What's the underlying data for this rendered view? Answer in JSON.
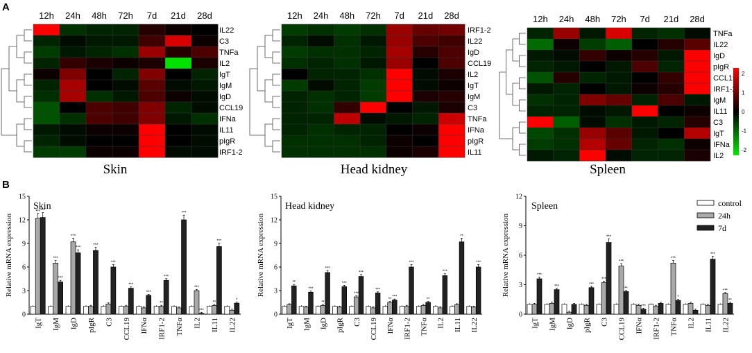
{
  "panels": {
    "a": "A",
    "b": "B"
  },
  "heatmaps": [
    {
      "title": "Skin",
      "columns": [
        "12h",
        "24h",
        "48h",
        "72h",
        "7d",
        "21d",
        "28d"
      ],
      "rows": [
        "IL22",
        "C3",
        "TNFa",
        "IL2",
        "IgT",
        "IgM",
        "IgD",
        "CCL19",
        "IFNa",
        "IL11",
        "pIgR",
        "IRF1-2"
      ],
      "values": [
        [
          2.0,
          -0.4,
          -0.3,
          -0.3,
          0.3,
          0.1,
          0.0
        ],
        [
          -0.3,
          -0.1,
          -0.2,
          -0.2,
          0.5,
          1.7,
          0.1
        ],
        [
          -0.5,
          -0.2,
          -0.3,
          -0.4,
          1.2,
          0.3,
          0.6
        ],
        [
          -0.3,
          0.4,
          0.2,
          0.1,
          0.2,
          -1.9,
          0.2
        ],
        [
          0.1,
          1.0,
          0.0,
          -0.3,
          1.0,
          0.0,
          -0.3
        ],
        [
          -0.3,
          1.3,
          0.0,
          -0.1,
          0.7,
          -0.1,
          -0.2
        ],
        [
          -0.4,
          1.3,
          -0.4,
          -0.2,
          0.6,
          0.1,
          -0.1
        ],
        [
          -0.7,
          0.0,
          0.6,
          0.5,
          1.0,
          -0.3,
          -0.1
        ],
        [
          -0.7,
          -0.4,
          0.6,
          0.5,
          1.0,
          -0.2,
          -0.4
        ],
        [
          -0.2,
          -0.1,
          0.1,
          0.1,
          2.0,
          0.0,
          -0.1
        ],
        [
          -0.3,
          -0.1,
          0.0,
          0.0,
          2.0,
          0.0,
          -0.1
        ],
        [
          -0.5,
          -0.5,
          0.1,
          0.1,
          2.0,
          -0.1,
          -0.1
        ]
      ]
    },
    {
      "title": "Head kidney",
      "columns": [
        "12h",
        "24h",
        "48h",
        "72h",
        "7d",
        "21d",
        "28d"
      ],
      "rows": [
        "IRF1-2",
        "IL22",
        "IgD",
        "CCL19",
        "IL2",
        "IgT",
        "IgM",
        "C3",
        "TNFa",
        "IFNa",
        "pIgR",
        "IL11"
      ],
      "values": [
        [
          -0.5,
          -0.4,
          -0.5,
          -0.4,
          1.2,
          0.8,
          0.9
        ],
        [
          -0.3,
          -0.1,
          -0.4,
          -0.2,
          1.2,
          0.6,
          0.5
        ],
        [
          -0.5,
          -0.4,
          -0.4,
          -0.3,
          1.3,
          0.3,
          0.6
        ],
        [
          -0.4,
          -0.3,
          -0.4,
          -0.2,
          1.2,
          0.0,
          0.6
        ],
        [
          0.0,
          -0.3,
          -0.3,
          -0.4,
          2.0,
          -0.1,
          0.2
        ],
        [
          -0.5,
          -0.1,
          -0.3,
          -0.5,
          2.0,
          -0.1,
          0.1
        ],
        [
          -0.3,
          -0.4,
          -0.3,
          -0.5,
          2.0,
          0.2,
          0.3
        ],
        [
          -0.3,
          -0.4,
          0.4,
          2.0,
          0.0,
          -0.2,
          0.2
        ],
        [
          -0.3,
          -0.3,
          1.5,
          -0.1,
          -0.2,
          -0.3,
          1.6
        ],
        [
          -0.3,
          -0.4,
          -0.3,
          -0.3,
          0.0,
          0.1,
          2.0
        ],
        [
          -0.4,
          -0.4,
          -0.4,
          -0.3,
          0.1,
          0.0,
          2.0
        ],
        [
          -0.4,
          -0.4,
          -0.4,
          -0.4,
          0.1,
          0.2,
          2.0
        ]
      ]
    },
    {
      "title": "Spleen",
      "columns": [
        "12h",
        "24h",
        "48h",
        "72h",
        "7d",
        "21d",
        "28d"
      ],
      "rows": [
        "TNFa",
        "IL22",
        "IgD",
        "pIgR",
        "CCL19",
        "IRF1-2",
        "IgM",
        "IL11",
        "C3",
        "IgT",
        "IFNa",
        "IL2"
      ],
      "values": [
        [
          -0.3,
          1.2,
          -0.2,
          1.7,
          -0.3,
          -0.4,
          -0.1
        ],
        [
          -0.9,
          0.1,
          -0.5,
          -0.8,
          0.0,
          0.3,
          0.7
        ],
        [
          -0.2,
          -0.1,
          0.4,
          0.1,
          0.3,
          -0.2,
          2.0
        ],
        [
          -0.3,
          -0.2,
          0.0,
          -0.2,
          0.6,
          -0.3,
          2.0
        ],
        [
          -0.7,
          0.3,
          -0.3,
          -0.2,
          0.0,
          0.4,
          2.0
        ],
        [
          -0.2,
          -0.3,
          0.0,
          -0.2,
          0.1,
          0.3,
          2.0
        ],
        [
          -0.4,
          -0.3,
          1.0,
          0.8,
          -0.3,
          0.6,
          -0.2
        ],
        [
          -0.3,
          -0.3,
          -0.1,
          -0.2,
          2.0,
          0.0,
          0.1
        ],
        [
          2.0,
          -0.8,
          -0.1,
          -0.4,
          -0.2,
          -0.3,
          0.3
        ],
        [
          -0.6,
          -0.4,
          1.2,
          0.7,
          -0.2,
          0.0,
          1.4
        ],
        [
          -0.5,
          -0.4,
          1.4,
          0.8,
          -0.3,
          -0.4,
          0.1
        ],
        [
          -0.2,
          -0.3,
          2.0,
          -0.1,
          -0.3,
          -0.3,
          0.2
        ]
      ]
    }
  ],
  "color_scale": {
    "ticks": [
      "2",
      "1",
      "0",
      "-1",
      "-2"
    ],
    "range": [
      -2,
      2
    ],
    "low": "#00ee00",
    "mid": "#000000",
    "high": "#ff0000"
  },
  "legend": {
    "items": [
      "control",
      "24h",
      "7d"
    ],
    "colors": [
      "#ffffff",
      "#a9a9a9",
      "#222222"
    ]
  },
  "chart_data": [
    {
      "type": "bar",
      "title": "Skin",
      "ylabel": "Relative mRNA expression",
      "ylim": [
        0,
        15
      ],
      "yticks": [
        "0",
        "3",
        "6",
        "9",
        "12",
        "15"
      ],
      "categories": [
        "IgT",
        "IgM",
        "IgD",
        "pIgR",
        "C3",
        "CCL19",
        "IFNα",
        "IRF1-2",
        "TNFα",
        "IL2",
        "IL11",
        "IL22"
      ],
      "series": [
        {
          "name": "control",
          "values": [
            1.0,
            1.0,
            1.0,
            1.0,
            1.0,
            1.0,
            1.0,
            1.0,
            1.0,
            1.0,
            1.0,
            1.0
          ]
        },
        {
          "name": "24h",
          "values": [
            12.2,
            6.5,
            9.2,
            1.0,
            1.3,
            1.0,
            0.8,
            1.0,
            0.8,
            3.0,
            1.1,
            0.5
          ]
        },
        {
          "name": "7d",
          "values": [
            12.3,
            4.1,
            7.8,
            8.1,
            6.0,
            3.3,
            2.4,
            4.3,
            12.0,
            0.1,
            8.6,
            1.4
          ]
        }
      ],
      "significance": {
        "24h": [
          "***",
          "***",
          "***",
          "",
          "",
          "",
          "",
          "**",
          "",
          "***",
          "**",
          ""
        ],
        "7d": [
          "***",
          "***",
          "***",
          "***",
          "***",
          "***",
          "***",
          "***",
          "***",
          "***",
          "***",
          "*"
        ]
      }
    },
    {
      "type": "bar",
      "title": "Head kidney",
      "ylabel": "Relative mRNA expression",
      "ylim": [
        0,
        15
      ],
      "yticks": [
        "0",
        "3",
        "6",
        "9",
        "12",
        "15"
      ],
      "categories": [
        "IgT",
        "IgM",
        "IgD",
        "pIgR",
        "C3",
        "CCL19",
        "IFNα",
        "IRF1-2",
        "TNFα",
        "IL2",
        "IL11",
        "IL22"
      ],
      "series": [
        {
          "name": "control",
          "values": [
            1.0,
            1.0,
            1.0,
            1.0,
            1.0,
            1.0,
            1.0,
            1.0,
            1.0,
            1.0,
            1.0,
            1.0
          ]
        },
        {
          "name": "24h",
          "values": [
            1.2,
            0.9,
            1.1,
            0.9,
            2.2,
            0.8,
            1.5,
            1.0,
            1.1,
            0.8,
            1.2,
            0.9
          ]
        },
        {
          "name": "7d",
          "values": [
            3.6,
            2.8,
            5.3,
            3.5,
            4.8,
            2.7,
            1.8,
            6.0,
            1.5,
            4.9,
            9.2,
            6.0
          ]
        }
      ],
      "significance": {
        "24h": [
          "",
          "",
          "**",
          "",
          "***",
          "",
          "**",
          "",
          "",
          "",
          "",
          ""
        ],
        "7d": [
          "**",
          "***",
          "***",
          "***",
          "***",
          "***",
          "***",
          "***",
          "**",
          "***",
          "**",
          "***"
        ]
      }
    },
    {
      "type": "bar",
      "title": "Spleen",
      "ylabel": "Relative mRNA expression",
      "ylim": [
        0,
        12
      ],
      "yticks": [
        "0",
        "3",
        "6",
        "9",
        "12"
      ],
      "categories": [
        "IgT",
        "IgM",
        "IgD",
        "pIgR",
        "C3",
        "CCL19",
        "IFNα",
        "IRF1-2",
        "TNFα",
        "IL2",
        "IL11",
        "IL22"
      ],
      "series": [
        {
          "name": "control",
          "values": [
            1.0,
            1.0,
            1.0,
            1.0,
            1.0,
            1.0,
            1.0,
            1.0,
            1.0,
            1.0,
            1.0,
            1.0
          ]
        },
        {
          "name": "24h",
          "values": [
            1.0,
            1.1,
            0.2,
            0.9,
            3.2,
            4.9,
            0.9,
            0.8,
            5.2,
            1.1,
            0.9,
            2.1
          ]
        },
        {
          "name": "7d",
          "values": [
            3.6,
            2.5,
            1.0,
            2.7,
            7.3,
            2.3,
            0.5,
            1.1,
            1.4,
            0.4,
            5.6,
            1.1
          ]
        }
      ],
      "significance": {
        "24h": [
          "",
          "",
          "",
          "",
          "***",
          "***",
          "",
          "",
          "***",
          "",
          "",
          "***"
        ],
        "7d": [
          "***",
          "***",
          "",
          "***",
          "***",
          "**",
          "***",
          "",
          "*",
          "",
          "***",
          "**"
        ]
      }
    }
  ]
}
